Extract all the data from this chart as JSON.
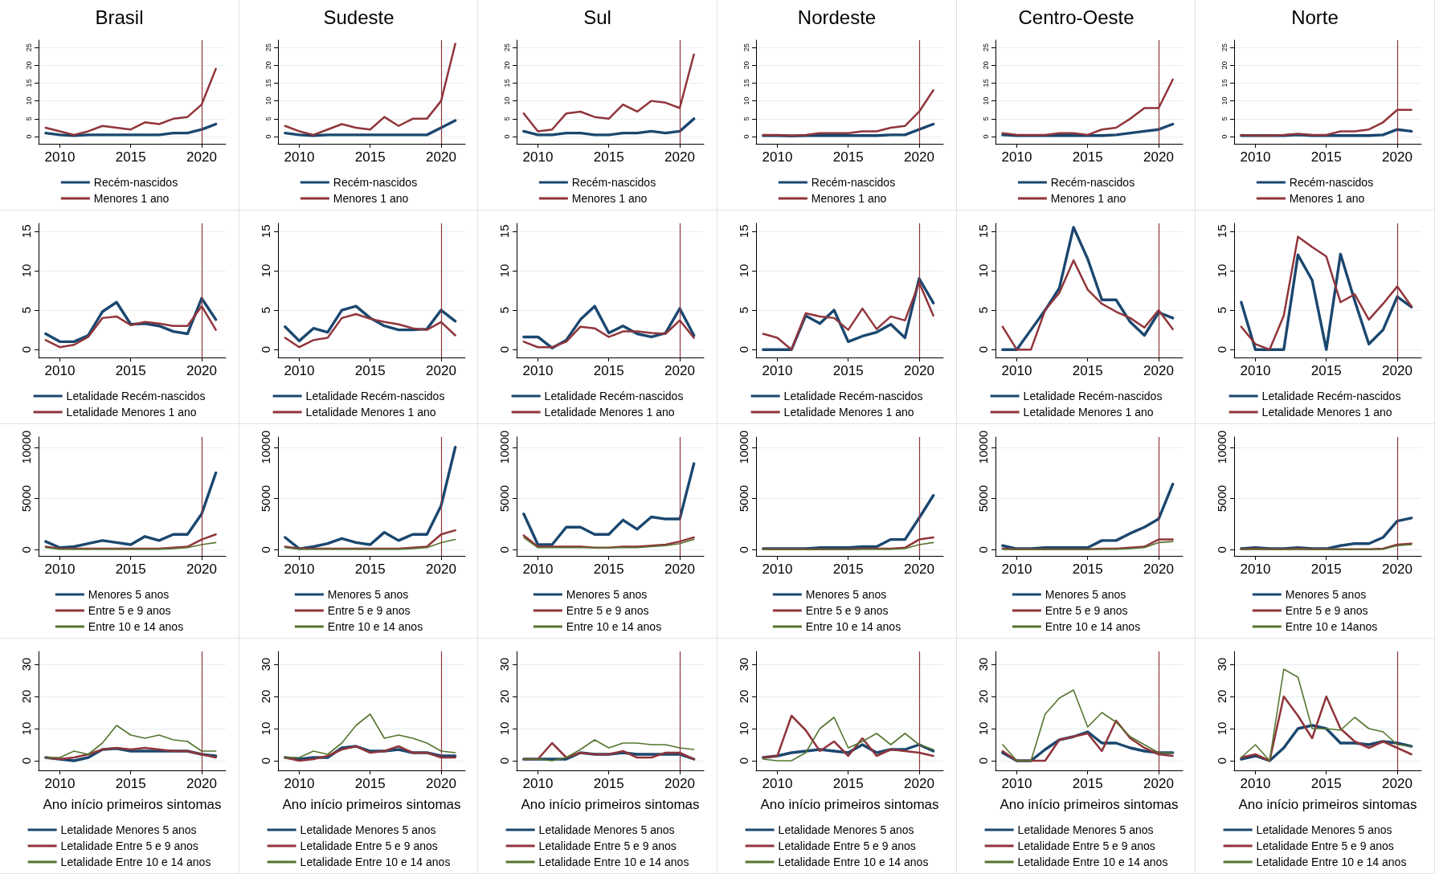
{
  "chart_data": [
    {
      "type": "line",
      "title": "Brasil",
      "x": [
        2009,
        2010,
        2011,
        2012,
        2013,
        2014,
        2015,
        2016,
        2017,
        2018,
        2019,
        2020,
        2021
      ],
      "xlim": [
        2008.5,
        2021.7
      ],
      "xticks": [
        2010,
        2015,
        2020
      ],
      "ylim": [
        -2,
        27
      ],
      "yticks": [
        0,
        5,
        10,
        15,
        20,
        25
      ],
      "grid": "y",
      "legend": "bottom",
      "ref_lines": [
        {
          "axis": "x",
          "value": 2020,
          "color": "#90353b"
        }
      ],
      "series": [
        {
          "name": "Recém-nascidos",
          "color": "#1a476f",
          "values": [
            1,
            0.5,
            0.3,
            0.5,
            0.5,
            0.5,
            0.5,
            0.5,
            0.5,
            1,
            1,
            2,
            3.5
          ]
        },
        {
          "name": "Menores 1 ano",
          "color": "#90353b",
          "values": [
            2.5,
            1.5,
            0.5,
            1.5,
            3,
            2.5,
            2,
            4,
            3.5,
            5,
            5.5,
            9,
            19
          ]
        }
      ]
    },
    {
      "type": "line",
      "title": "Sudeste",
      "x": [
        2009,
        2010,
        2011,
        2012,
        2013,
        2014,
        2015,
        2016,
        2017,
        2018,
        2019,
        2020,
        2021
      ],
      "xlim": [
        2008.5,
        2021.7
      ],
      "xticks": [
        2010,
        2015,
        2020
      ],
      "ylim": [
        -2,
        27
      ],
      "yticks": [
        0,
        5,
        10,
        15,
        20,
        25
      ],
      "grid": "y",
      "legend": "bottom",
      "ref_lines": [
        {
          "axis": "x",
          "value": 2020,
          "color": "#90353b"
        }
      ],
      "series": [
        {
          "name": "Recém-nascidos",
          "color": "#1a476f",
          "values": [
            1,
            0.5,
            0.3,
            0.5,
            0.5,
            0.5,
            0.5,
            0.5,
            0.5,
            0.5,
            0.5,
            2.5,
            4.5
          ]
        },
        {
          "name": "Menores 1 ano",
          "color": "#90353b",
          "values": [
            3,
            1.5,
            0.5,
            2,
            3.5,
            2.5,
            2,
            5.5,
            3,
            5,
            5,
            10,
            26
          ]
        }
      ]
    },
    {
      "type": "line",
      "title": "Sul",
      "x": [
        2009,
        2010,
        2011,
        2012,
        2013,
        2014,
        2015,
        2016,
        2017,
        2018,
        2019,
        2020,
        2021
      ],
      "xlim": [
        2008.5,
        2021.7
      ],
      "xticks": [
        2010,
        2015,
        2020
      ],
      "ylim": [
        -2,
        27
      ],
      "yticks": [
        0,
        5,
        10,
        15,
        20,
        25
      ],
      "grid": "y",
      "legend": "bottom",
      "ref_lines": [
        {
          "axis": "x",
          "value": 2020,
          "color": "#90353b"
        }
      ],
      "series": [
        {
          "name": "Recém-nascidos",
          "color": "#1a476f",
          "values": [
            1.5,
            0.5,
            0.5,
            1,
            1,
            0.5,
            0.5,
            1,
            1,
            1.5,
            1,
            1.5,
            5
          ]
        },
        {
          "name": "Menores 1 ano",
          "color": "#90353b",
          "values": [
            6.5,
            1.5,
            2,
            6.5,
            7,
            5.5,
            5,
            9,
            7,
            10,
            9.5,
            8,
            23
          ]
        }
      ]
    },
    {
      "type": "line",
      "title": "Nordeste",
      "x": [
        2009,
        2010,
        2011,
        2012,
        2013,
        2014,
        2015,
        2016,
        2017,
        2018,
        2019,
        2020,
        2021
      ],
      "xlim": [
        2008.5,
        2021.7
      ],
      "xticks": [
        2010,
        2015,
        2020
      ],
      "ylim": [
        -2,
        27
      ],
      "yticks": [
        0,
        5,
        10,
        15,
        20,
        25
      ],
      "grid": "y",
      "legend": "bottom",
      "ref_lines": [
        {
          "axis": "x",
          "value": 2020,
          "color": "#90353b"
        }
      ],
      "series": [
        {
          "name": "Recém-nascidos",
          "color": "#1a476f",
          "values": [
            0.3,
            0.3,
            0.2,
            0.3,
            0.3,
            0.3,
            0.3,
            0.3,
            0.3,
            0.5,
            0.5,
            2,
            3.5
          ]
        },
        {
          "name": "Menores 1 ano",
          "color": "#90353b",
          "values": [
            0.5,
            0.5,
            0.3,
            0.5,
            1,
            1,
            1,
            1.5,
            1.5,
            2.5,
            3,
            7,
            13
          ]
        }
      ]
    },
    {
      "type": "line",
      "title": "Centro-Oeste",
      "x": [
        2009,
        2010,
        2011,
        2012,
        2013,
        2014,
        2015,
        2016,
        2017,
        2018,
        2019,
        2020,
        2021
      ],
      "xlim": [
        2008.5,
        2021.7
      ],
      "xticks": [
        2010,
        2015,
        2020
      ],
      "ylim": [
        -2,
        27
      ],
      "yticks": [
        0,
        5,
        10,
        15,
        20,
        25
      ],
      "grid": "y",
      "legend": "bottom",
      "ref_lines": [
        {
          "axis": "x",
          "value": 2020,
          "color": "#90353b"
        }
      ],
      "series": [
        {
          "name": "Recém-nascidos",
          "color": "#1a476f",
          "values": [
            0.5,
            0.3,
            0.3,
            0.3,
            0.3,
            0.3,
            0.3,
            0.3,
            0.5,
            1,
            1.5,
            2,
            3.5
          ]
        },
        {
          "name": "Menores 1 ano",
          "color": "#90353b",
          "values": [
            1,
            0.5,
            0.5,
            0.5,
            1,
            1,
            0.5,
            2,
            2.5,
            5,
            8,
            8,
            16
          ]
        }
      ]
    },
    {
      "type": "line",
      "title": "Norte",
      "x": [
        2009,
        2010,
        2011,
        2012,
        2013,
        2014,
        2015,
        2016,
        2017,
        2018,
        2019,
        2020,
        2021
      ],
      "xlim": [
        2008.5,
        2021.7
      ],
      "xticks": [
        2010,
        2015,
        2020
      ],
      "ylim": [
        -2,
        27
      ],
      "yticks": [
        0,
        5,
        10,
        15,
        20,
        25
      ],
      "grid": "y",
      "legend": "bottom",
      "ref_lines": [
        {
          "axis": "x",
          "value": 2020,
          "color": "#90353b"
        }
      ],
      "series": [
        {
          "name": "Recém-nascidos",
          "color": "#1a476f",
          "values": [
            0.3,
            0.3,
            0.3,
            0.3,
            0.5,
            0.3,
            0.3,
            0.3,
            0.3,
            0.3,
            0.5,
            2,
            1.5
          ]
        },
        {
          "name": "Menores 1 ano",
          "color": "#90353b",
          "values": [
            0.5,
            0.3,
            0.3,
            0.5,
            0.8,
            0.5,
            0.5,
            1.5,
            1.5,
            2,
            4,
            7.5,
            7.5
          ]
        }
      ]
    },
    {
      "type": "line",
      "x": [
        2009,
        2010,
        2011,
        2012,
        2013,
        2014,
        2015,
        2016,
        2017,
        2018,
        2019,
        2020,
        2021
      ],
      "xlim": [
        2008.5,
        2021.7
      ],
      "xticks": [
        2010,
        2015,
        2020
      ],
      "ylim": [
        -1,
        16
      ],
      "yticks": [
        0,
        5,
        10,
        15
      ],
      "grid": "y",
      "legend": "bottom",
      "ref_lines": [
        {
          "axis": "x",
          "value": 2020,
          "color": "#90353b"
        }
      ],
      "series": [
        {
          "name": "Letalidade Recém-nascidos",
          "color": "#1a476f",
          "values": [
            2,
            1,
            1,
            1.8,
            4.8,
            6,
            3.2,
            3.3,
            3,
            2.3,
            2,
            6.5,
            3.8
          ]
        },
        {
          "name": "Letalidade Menores 1 ano",
          "color": "#90353b",
          "values": [
            1.2,
            0.3,
            0.6,
            1.6,
            4,
            4.2,
            3.1,
            3.5,
            3.3,
            3,
            3,
            5.5,
            2.5
          ]
        }
      ]
    },
    {
      "type": "line",
      "x": [
        2009,
        2010,
        2011,
        2012,
        2013,
        2014,
        2015,
        2016,
        2017,
        2018,
        2019,
        2020,
        2021
      ],
      "xlim": [
        2008.5,
        2021.7
      ],
      "xticks": [
        2010,
        2015,
        2020
      ],
      "ylim": [
        -1,
        16
      ],
      "yticks": [
        0,
        5,
        10,
        15
      ],
      "grid": "y",
      "legend": "bottom",
      "ref_lines": [
        {
          "axis": "x",
          "value": 2020,
          "color": "#90353b"
        }
      ],
      "series": [
        {
          "name": "Letalidade Recém-nascidos",
          "color": "#1a476f",
          "values": [
            2.9,
            1.1,
            2.7,
            2.2,
            5,
            5.5,
            4,
            3,
            2.5,
            2.5,
            2.6,
            5,
            3.6
          ]
        },
        {
          "name": "Letalidade Menores 1 ano",
          "color": "#90353b",
          "values": [
            1.5,
            0.3,
            1.2,
            1.5,
            4,
            4.5,
            3.9,
            3.5,
            3.2,
            2.7,
            2.5,
            3.5,
            1.8
          ]
        }
      ]
    },
    {
      "type": "line",
      "x": [
        2009,
        2010,
        2011,
        2012,
        2013,
        2014,
        2015,
        2016,
        2017,
        2018,
        2019,
        2020,
        2021
      ],
      "xlim": [
        2008.5,
        2021.7
      ],
      "xticks": [
        2010,
        2015,
        2020
      ],
      "ylim": [
        -1,
        16
      ],
      "yticks": [
        0,
        5,
        10,
        15
      ],
      "grid": "y",
      "legend": "bottom",
      "ref_lines": [
        {
          "axis": "x",
          "value": 2020,
          "color": "#90353b"
        }
      ],
      "series": [
        {
          "name": "Letalidade Recém-nascidos",
          "color": "#1a476f",
          "values": [
            1.6,
            1.6,
            0.2,
            1.2,
            3.8,
            5.5,
            2.1,
            3,
            2,
            1.6,
            2.1,
            5.2,
            1.8
          ]
        },
        {
          "name": "Letalidade Menores 1 ano",
          "color": "#90353b",
          "values": [
            1,
            0.3,
            0.3,
            1,
            2.9,
            2.7,
            1.6,
            2.3,
            2.3,
            2.1,
            2,
            3.7,
            1.5
          ]
        }
      ]
    },
    {
      "type": "line",
      "x": [
        2009,
        2010,
        2011,
        2012,
        2013,
        2014,
        2015,
        2016,
        2017,
        2018,
        2019,
        2020,
        2021
      ],
      "xlim": [
        2008.5,
        2021.7
      ],
      "xticks": [
        2010,
        2015,
        2020
      ],
      "ylim": [
        -1,
        16
      ],
      "yticks": [
        0,
        5,
        10,
        15
      ],
      "grid": "y",
      "legend": "bottom",
      "ref_lines": [
        {
          "axis": "x",
          "value": 2020,
          "color": "#90353b"
        }
      ],
      "series": [
        {
          "name": "Letalidade Recém-nascidos",
          "color": "#1a476f",
          "values": [
            0,
            0,
            0,
            4.3,
            3.3,
            5,
            1,
            1.7,
            2.2,
            3.2,
            1.5,
            9,
            5.9
          ]
        },
        {
          "name": "Letalidade Menores 1 ano",
          "color": "#90353b",
          "values": [
            2,
            1.5,
            0,
            4.6,
            4.2,
            4,
            2.5,
            5.2,
            2.6,
            4.2,
            3.7,
            8.5,
            4.3
          ]
        }
      ]
    },
    {
      "type": "line",
      "x": [
        2009,
        2010,
        2011,
        2012,
        2013,
        2014,
        2015,
        2016,
        2017,
        2018,
        2019,
        2020,
        2021
      ],
      "xlim": [
        2008.5,
        2021.7
      ],
      "xticks": [
        2010,
        2015,
        2020
      ],
      "ylim": [
        -1,
        16
      ],
      "yticks": [
        0,
        5,
        10,
        15
      ],
      "grid": "y",
      "legend": "bottom",
      "ref_lines": [
        {
          "axis": "x",
          "value": 2020,
          "color": "#90353b"
        }
      ],
      "series": [
        {
          "name": "Letalidade Recém-nascidos",
          "color": "#1a476f",
          "values": [
            0,
            0,
            2.5,
            5,
            7.8,
            15.5,
            11.5,
            6.3,
            6.3,
            3.5,
            1.8,
            4.7,
            4
          ]
        },
        {
          "name": "Letalidade Menores 1 ano",
          "color": "#90353b",
          "values": [
            2.9,
            0,
            0,
            5,
            7.2,
            11.3,
            7.6,
            5.8,
            4.8,
            4,
            2.8,
            5,
            2.6
          ]
        }
      ]
    },
    {
      "type": "line",
      "x": [
        2009,
        2010,
        2011,
        2012,
        2013,
        2014,
        2015,
        2016,
        2017,
        2018,
        2019,
        2020,
        2021
      ],
      "xlim": [
        2008.5,
        2021.7
      ],
      "xticks": [
        2010,
        2015,
        2020
      ],
      "ylim": [
        -1,
        16
      ],
      "yticks": [
        0,
        5,
        10,
        15
      ],
      "grid": "y",
      "legend": "bottom",
      "ref_lines": [
        {
          "axis": "x",
          "value": 2020,
          "color": "#90353b"
        }
      ],
      "series": [
        {
          "name": "Letalidade Recém-nascidos",
          "color": "#1a476f",
          "values": [
            6,
            0,
            0,
            0,
            12,
            8.8,
            0,
            12.1,
            6.2,
            0.7,
            2.5,
            6.7,
            5.4
          ]
        },
        {
          "name": "Letalidade Menores 1 ano",
          "color": "#90353b",
          "values": [
            2.9,
            0.7,
            0,
            4.3,
            14.3,
            13,
            11.8,
            6,
            7,
            3.8,
            5.8,
            8,
            5.5
          ]
        }
      ]
    },
    {
      "type": "line",
      "x": [
        2009,
        2010,
        2011,
        2012,
        2013,
        2014,
        2015,
        2016,
        2017,
        2018,
        2019,
        2020,
        2021
      ],
      "xlim": [
        2008.5,
        2021.7
      ],
      "xticks": [
        2010,
        2015,
        2020
      ],
      "ylim": [
        -600,
        11000
      ],
      "yticks": [
        0,
        5000,
        10000
      ],
      "grid": "y",
      "legend": "bottom",
      "ref_lines": [
        {
          "axis": "x",
          "value": 2020,
          "color": "#90353b"
        }
      ],
      "series": [
        {
          "name": "Menores 5 anos",
          "color": "#1a476f",
          "values": [
            800,
            200,
            300,
            600,
            900,
            700,
            500,
            1300,
            900,
            1500,
            1500,
            3500,
            7500
          ]
        },
        {
          "name": "Entre 5 e 9 anos",
          "color": "#90353b",
          "values": [
            300,
            100,
            100,
            100,
            100,
            100,
            100,
            100,
            100,
            200,
            300,
            1000,
            1500
          ]
        },
        {
          "name": "Entre 10 e 14 anos",
          "color": "#55752f",
          "values": [
            200,
            50,
            50,
            50,
            50,
            50,
            50,
            50,
            50,
            100,
            200,
            500,
            700
          ]
        }
      ]
    },
    {
      "type": "line",
      "x": [
        2009,
        2010,
        2011,
        2012,
        2013,
        2014,
        2015,
        2016,
        2017,
        2018,
        2019,
        2020,
        2021
      ],
      "xlim": [
        2008.5,
        2021.7
      ],
      "xticks": [
        2010,
        2015,
        2020
      ],
      "ylim": [
        -600,
        11000
      ],
      "yticks": [
        0,
        5000,
        10000
      ],
      "grid": "y",
      "legend": "bottom",
      "ref_lines": [
        {
          "axis": "x",
          "value": 2020,
          "color": "#90353b"
        }
      ],
      "series": [
        {
          "name": "Menores 5 anos",
          "color": "#1a476f",
          "values": [
            1200,
            100,
            300,
            600,
            1100,
            700,
            500,
            1700,
            900,
            1500,
            1500,
            4300,
            10000
          ]
        },
        {
          "name": "Entre 5 e 9 anos",
          "color": "#90353b",
          "values": [
            300,
            100,
            100,
            100,
            100,
            100,
            100,
            100,
            100,
            200,
            300,
            1500,
            1900
          ]
        },
        {
          "name": "Entre 10 e 14 anos",
          "color": "#55752f",
          "values": [
            200,
            50,
            50,
            50,
            50,
            50,
            50,
            50,
            50,
            100,
            200,
            700,
            1000
          ]
        }
      ]
    },
    {
      "type": "line",
      "x": [
        2009,
        2010,
        2011,
        2012,
        2013,
        2014,
        2015,
        2016,
        2017,
        2018,
        2019,
        2020,
        2021
      ],
      "xlim": [
        2008.5,
        2021.7
      ],
      "xticks": [
        2010,
        2015,
        2020
      ],
      "ylim": [
        -600,
        11000
      ],
      "yticks": [
        0,
        5000,
        10000
      ],
      "grid": "y",
      "legend": "bottom",
      "ref_lines": [
        {
          "axis": "x",
          "value": 2020,
          "color": "#90353b"
        }
      ],
      "series": [
        {
          "name": "Menores 5 anos",
          "color": "#1a476f",
          "values": [
            3500,
            500,
            500,
            2200,
            2200,
            1500,
            1500,
            2900,
            2000,
            3200,
            3000,
            3000,
            8400
          ]
        },
        {
          "name": "Entre 5 e 9 anos",
          "color": "#90353b",
          "values": [
            1400,
            300,
            300,
            300,
            300,
            200,
            200,
            300,
            300,
            400,
            500,
            800,
            1200
          ]
        },
        {
          "name": "Entre 10 e 14 anos",
          "color": "#55752f",
          "values": [
            1200,
            200,
            200,
            200,
            200,
            200,
            200,
            200,
            200,
            300,
            400,
            600,
            1000
          ]
        }
      ]
    },
    {
      "type": "line",
      "x": [
        2009,
        2010,
        2011,
        2012,
        2013,
        2014,
        2015,
        2016,
        2017,
        2018,
        2019,
        2020,
        2021
      ],
      "xlim": [
        2008.5,
        2021.7
      ],
      "xticks": [
        2010,
        2015,
        2020
      ],
      "ylim": [
        -600,
        11000
      ],
      "yticks": [
        0,
        5000,
        10000
      ],
      "grid": "y",
      "legend": "bottom",
      "ref_lines": [
        {
          "axis": "x",
          "value": 2020,
          "color": "#90353b"
        }
      ],
      "series": [
        {
          "name": "Menores 5 anos",
          "color": "#1a476f",
          "values": [
            100,
            100,
            100,
            100,
            200,
            200,
            200,
            300,
            300,
            1000,
            1000,
            3100,
            5300
          ]
        },
        {
          "name": "Entre 5 e 9 anos",
          "color": "#90353b",
          "values": [
            50,
            50,
            50,
            50,
            50,
            50,
            50,
            100,
            100,
            100,
            200,
            1000,
            1200
          ]
        },
        {
          "name": "Entre 10 e 14 anos",
          "color": "#55752f",
          "values": [
            30,
            30,
            30,
            30,
            30,
            30,
            30,
            50,
            50,
            50,
            100,
            500,
            700
          ]
        }
      ]
    },
    {
      "type": "line",
      "x": [
        2009,
        2010,
        2011,
        2012,
        2013,
        2014,
        2015,
        2016,
        2017,
        2018,
        2019,
        2020,
        2021
      ],
      "xlim": [
        2008.5,
        2021.7
      ],
      "xticks": [
        2010,
        2015,
        2020
      ],
      "ylim": [
        -600,
        11000
      ],
      "yticks": [
        0,
        5000,
        10000
      ],
      "grid": "y",
      "legend": "bottom",
      "ref_lines": [
        {
          "axis": "x",
          "value": 2020,
          "color": "#90353b"
        }
      ],
      "series": [
        {
          "name": "Menores 5 anos",
          "color": "#1a476f",
          "values": [
            400,
            100,
            100,
            200,
            200,
            200,
            200,
            900,
            900,
            1600,
            2200,
            3000,
            6400
          ]
        },
        {
          "name": "Entre 5 e 9 anos",
          "color": "#90353b",
          "values": [
            100,
            50,
            50,
            50,
            50,
            50,
            50,
            100,
            100,
            200,
            300,
            1000,
            1000
          ]
        },
        {
          "name": "Entre 10 e 14 anos",
          "color": "#55752f",
          "values": [
            50,
            30,
            30,
            30,
            30,
            30,
            30,
            50,
            50,
            100,
            200,
            700,
            800
          ]
        }
      ]
    },
    {
      "type": "line",
      "x": [
        2009,
        2010,
        2011,
        2012,
        2013,
        2014,
        2015,
        2016,
        2017,
        2018,
        2019,
        2020,
        2021
      ],
      "xlim": [
        2008.5,
        2021.7
      ],
      "xticks": [
        2010,
        2015,
        2020
      ],
      "ylim": [
        -600,
        11000
      ],
      "yticks": [
        0,
        5000,
        10000
      ],
      "grid": "y",
      "legend": "bottom",
      "ref_lines": [
        {
          "axis": "x",
          "value": 2020,
          "color": "#90353b"
        }
      ],
      "series": [
        {
          "name": "Menores 5 anos",
          "color": "#1a476f",
          "values": [
            100,
            200,
            100,
            100,
            200,
            100,
            100,
            400,
            600,
            600,
            1200,
            2800,
            3100
          ]
        },
        {
          "name": "Entre 5 e 9 anos",
          "color": "#90353b",
          "values": [
            50,
            100,
            50,
            50,
            100,
            50,
            50,
            50,
            50,
            50,
            100,
            500,
            600
          ]
        },
        {
          "name": "Entre 10 e 14anos",
          "color": "#55752f",
          "values": [
            30,
            50,
            30,
            30,
            50,
            30,
            30,
            30,
            30,
            30,
            50,
            400,
            500
          ]
        }
      ]
    },
    {
      "type": "line",
      "xlabel": "Ano início primeiros sintomas",
      "x": [
        2009,
        2010,
        2011,
        2012,
        2013,
        2014,
        2015,
        2016,
        2017,
        2018,
        2019,
        2020,
        2021
      ],
      "xlim": [
        2008.5,
        2021.7
      ],
      "xticks": [
        2010,
        2015,
        2020
      ],
      "ylim": [
        -3,
        34
      ],
      "yticks": [
        0,
        10,
        20,
        30
      ],
      "grid": "y",
      "legend": "bottom",
      "ref_lines": [
        {
          "axis": "x",
          "value": 2020,
          "color": "#90353b"
        }
      ],
      "series": [
        {
          "name": "Letalidade Menores 5 anos",
          "color": "#1a476f",
          "values": [
            1,
            0.5,
            0,
            1,
            3.5,
            3.8,
            3,
            3,
            3,
            3,
            3,
            2,
            1.5
          ]
        },
        {
          "name": "Letalidade Entre 5 e 9 anos",
          "color": "#90353b",
          "values": [
            1,
            0.5,
            1,
            2,
            3.5,
            4,
            3.5,
            4,
            3.5,
            3,
            3,
            2,
            1
          ]
        },
        {
          "name": "Letalidade Entre 10 e 14 anos",
          "color": "#55752f",
          "values": [
            1,
            1,
            3,
            2,
            5.5,
            11,
            8,
            7,
            8,
            6.5,
            6,
            3,
            3
          ]
        }
      ]
    },
    {
      "type": "line",
      "xlabel": "Ano início primeiros sintomas",
      "x": [
        2009,
        2010,
        2011,
        2012,
        2013,
        2014,
        2015,
        2016,
        2017,
        2018,
        2019,
        2020,
        2021
      ],
      "xlim": [
        2008.5,
        2021.7
      ],
      "xticks": [
        2010,
        2015,
        2020
      ],
      "ylim": [
        -3,
        34
      ],
      "yticks": [
        0,
        10,
        20,
        30
      ],
      "grid": "y",
      "legend": "bottom",
      "ref_lines": [
        {
          "axis": "x",
          "value": 2020,
          "color": "#90353b"
        }
      ],
      "series": [
        {
          "name": "Letalidade Menores 5 anos",
          "color": "#1a476f",
          "values": [
            1,
            0.5,
            1,
            1,
            4,
            4.5,
            3,
            3,
            3.5,
            2.5,
            2.5,
            1.5,
            1.5
          ]
        },
        {
          "name": "Letalidade Entre 5 e 9 anos",
          "color": "#90353b",
          "values": [
            1,
            0,
            0.5,
            1.5,
            3.5,
            4.5,
            2.5,
            3,
            4.5,
            2.5,
            2.5,
            1,
            1
          ]
        },
        {
          "name": "Letalidade Entre 10 e 14 anos",
          "color": "#55752f",
          "values": [
            1,
            1,
            3,
            2,
            5.5,
            11,
            14.5,
            7,
            8,
            7,
            5.5,
            3,
            2.5
          ]
        }
      ]
    },
    {
      "type": "line",
      "xlabel": "Ano início primeiros sintomas",
      "x": [
        2009,
        2010,
        2011,
        2012,
        2013,
        2014,
        2015,
        2016,
        2017,
        2018,
        2019,
        2020,
        2021
      ],
      "xlim": [
        2008.5,
        2021.7
      ],
      "xticks": [
        2010,
        2015,
        2020
      ],
      "ylim": [
        -3,
        34
      ],
      "yticks": [
        0,
        10,
        20,
        30
      ],
      "grid": "y",
      "legend": "bottom",
      "ref_lines": [
        {
          "axis": "x",
          "value": 2020,
          "color": "#90353b"
        }
      ],
      "series": [
        {
          "name": "Letalidade Menores 5 anos",
          "color": "#1a476f",
          "values": [
            0.5,
            0.5,
            0.5,
            0.5,
            2.5,
            2,
            2,
            2.5,
            2,
            2,
            2,
            2,
            0.5
          ]
        },
        {
          "name": "Letalidade Entre 5 e 9 anos",
          "color": "#90353b",
          "values": [
            0.5,
            0.5,
            5.5,
            1,
            2.5,
            2,
            2,
            3,
            1,
            1,
            2.5,
            2.5,
            0.5
          ]
        },
        {
          "name": "Letalidade Entre 10 e 14 anos",
          "color": "#55752f",
          "values": [
            0.5,
            0.5,
            0,
            1,
            3.5,
            6.5,
            4,
            5.5,
            5.5,
            5,
            5,
            4,
            3.5
          ]
        }
      ]
    },
    {
      "type": "line",
      "xlabel": "Ano início primeiros sintomas",
      "x": [
        2009,
        2010,
        2011,
        2012,
        2013,
        2014,
        2015,
        2016,
        2017,
        2018,
        2019,
        2020,
        2021
      ],
      "xlim": [
        2008.5,
        2021.7
      ],
      "xticks": [
        2010,
        2015,
        2020
      ],
      "ylim": [
        -3,
        34
      ],
      "yticks": [
        0,
        10,
        20,
        30
      ],
      "grid": "y",
      "legend": "bottom",
      "ref_lines": [
        {
          "axis": "x",
          "value": 2020,
          "color": "#90353b"
        }
      ],
      "series": [
        {
          "name": "Letalidade Menores 5 anos",
          "color": "#1a476f",
          "values": [
            1,
            1.5,
            2.5,
            3,
            3.5,
            3,
            2.5,
            5,
            2.5,
            3.5,
            3.5,
            5,
            3
          ]
        },
        {
          "name": "Letalidade Entre 5 e 9 anos",
          "color": "#90353b",
          "values": [
            1,
            1.5,
            14,
            9.5,
            3,
            6,
            1.5,
            7,
            1.5,
            3.5,
            3,
            2.5,
            1.5
          ]
        },
        {
          "name": "Letalidade Entre 10 e 14 anos",
          "color": "#55752f",
          "values": [
            0.5,
            0,
            0,
            2.5,
            10,
            13.5,
            4,
            6,
            8.5,
            5,
            8.5,
            5,
            3.5
          ]
        }
      ]
    },
    {
      "type": "line",
      "xlabel": "Ano início primeiros sintomas",
      "x": [
        2009,
        2010,
        2011,
        2012,
        2013,
        2014,
        2015,
        2016,
        2017,
        2018,
        2019,
        2020,
        2021
      ],
      "xlim": [
        2008.5,
        2021.7
      ],
      "xticks": [
        2010,
        2015,
        2020
      ],
      "ylim": [
        -3,
        34
      ],
      "yticks": [
        0,
        10,
        20,
        30
      ],
      "grid": "y",
      "legend": "bottom",
      "ref_lines": [
        {
          "axis": "x",
          "value": 2020,
          "color": "#90353b"
        }
      ],
      "series": [
        {
          "name": "Letalidade Menores 5 anos",
          "color": "#1a476f",
          "values": [
            2.5,
            0,
            0,
            3.5,
            6.5,
            7.5,
            9,
            5.5,
            5.5,
            4,
            3,
            2.5,
            2.5
          ]
        },
        {
          "name": "Letalidade Entre 5 e 9 anos",
          "color": "#90353b",
          "values": [
            3,
            0,
            0,
            0,
            6.5,
            7.5,
            8.5,
            3,
            12.5,
            7,
            4,
            2,
            1.5
          ]
        },
        {
          "name": "Letalidade Entre 10 e 14 anos",
          "color": "#55752f",
          "values": [
            5,
            0,
            0,
            14.5,
            19.5,
            22,
            10.5,
            15,
            12,
            7.5,
            5,
            2.5,
            2.5
          ]
        }
      ]
    },
    {
      "type": "line",
      "xlabel": "Ano início primeiros sintomas",
      "x": [
        2009,
        2010,
        2011,
        2012,
        2013,
        2014,
        2015,
        2016,
        2017,
        2018,
        2019,
        2020,
        2021
      ],
      "xlim": [
        2008.5,
        2021.7
      ],
      "xticks": [
        2010,
        2015,
        2020
      ],
      "ylim": [
        -3,
        34
      ],
      "yticks": [
        0,
        10,
        20,
        30
      ],
      "grid": "y",
      "legend": "bottom",
      "ref_lines": [
        {
          "axis": "x",
          "value": 2020,
          "color": "#90353b"
        }
      ],
      "series": [
        {
          "name": "Letalidade Menores 5 anos",
          "color": "#1a476f",
          "values": [
            0.5,
            1.5,
            0,
            4,
            10,
            11,
            10,
            5.5,
            5.5,
            5,
            6,
            5.5,
            4.5
          ]
        },
        {
          "name": "Letalidade Entre 5 e 9 anos",
          "color": "#90353b",
          "values": [
            1,
            2,
            0,
            20,
            14,
            7,
            20,
            10,
            6,
            4,
            6,
            4,
            2
          ]
        },
        {
          "name": "Letalidade Entre 10 e 14 anos",
          "color": "#55752f",
          "values": [
            1,
            5,
            0,
            28.5,
            26,
            10,
            10,
            9.5,
            13.5,
            10,
            9,
            5,
            4.5
          ]
        }
      ]
    }
  ]
}
